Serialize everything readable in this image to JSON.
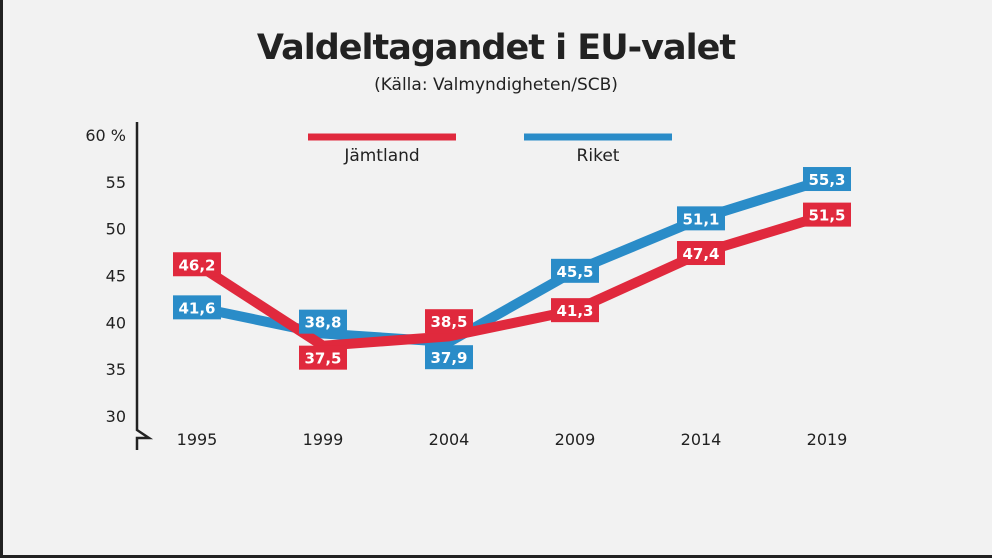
{
  "chart_data": {
    "type": "line",
    "title": "Valdeltagandet i EU-valet",
    "subtitle": "(Källa: Valmyndigheten/SCB)",
    "categories": [
      "1995",
      "1999",
      "2004",
      "2009",
      "2014",
      "2019"
    ],
    "yticks": [
      "60 %",
      "55",
      "50",
      "45",
      "40",
      "35",
      "30"
    ],
    "ylim": [
      30,
      60
    ],
    "grid": false,
    "legend": "top",
    "series": [
      {
        "name": "Jämtland",
        "color": "#e0293d",
        "values": [
          46.2,
          37.5,
          38.5,
          41.3,
          47.4,
          51.5
        ],
        "labels": [
          "46,2",
          "37,5",
          "38,5",
          "41,3",
          "47,4",
          "51,5"
        ]
      },
      {
        "name": "Riket",
        "color": "#2a8cc8",
        "values": [
          41.6,
          38.8,
          37.9,
          45.5,
          51.1,
          55.3
        ],
        "labels": [
          "41,6",
          "38,8",
          "37,9",
          "45,5",
          "51,1",
          "55,3"
        ]
      }
    ]
  }
}
